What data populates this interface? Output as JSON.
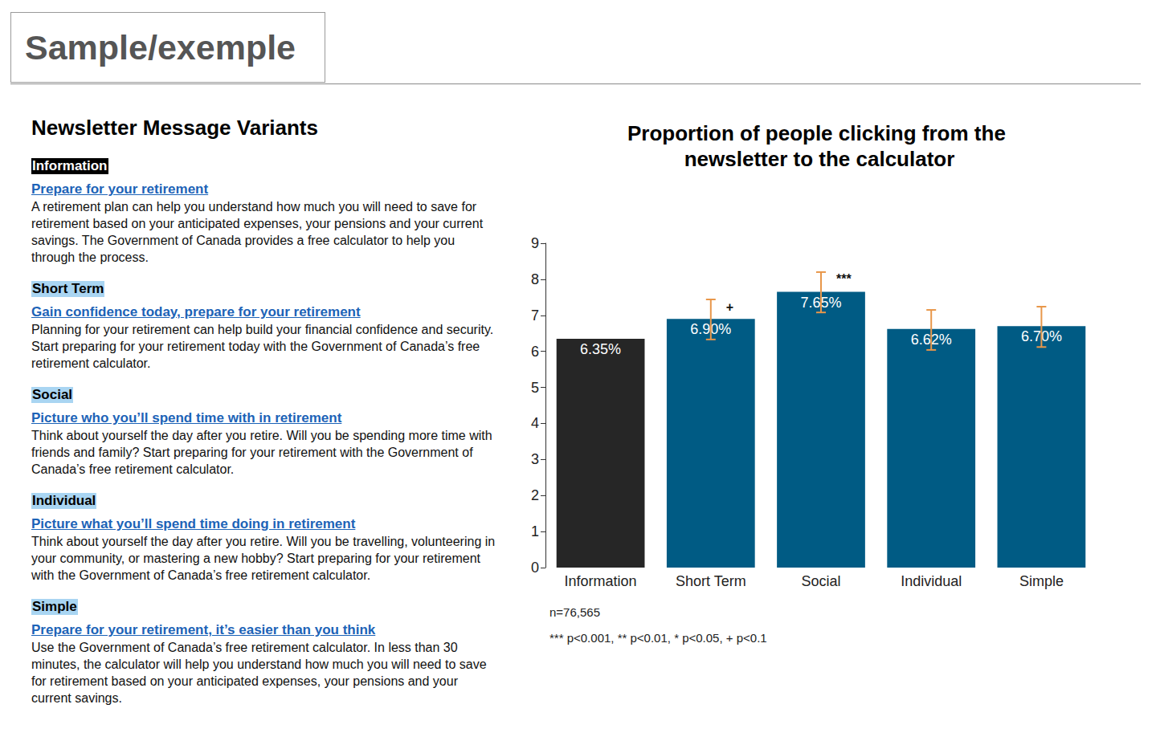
{
  "header": {
    "label": "Sample/exemple"
  },
  "variants": {
    "title": "Newsletter Message Variants",
    "items": [
      {
        "tag": "Information",
        "link": "Prepare for your retirement",
        "body": "A retirement plan can help you understand how much you will need to save for retirement based on your anticipated expenses, your pensions and your current savings. The Government of Canada provides a free calculator to help you through the process."
      },
      {
        "tag": "Short Term",
        "link": "Gain confidence today, prepare for your retirement",
        "body": "Planning for your retirement can help build your financial confidence and security. Start preparing for your retirement today with the Government of Canada’s free retirement calculator."
      },
      {
        "tag": "Social",
        "link": "Picture who you’ll spend time with in retirement",
        "body": "Think about yourself the day after you retire. Will you be spending more time with friends and family? Start preparing for your retirement with the Government of Canada’s free retirement calculator."
      },
      {
        "tag": "Individual",
        "link": "Picture what you’ll spend time doing in retirement",
        "body": "Think about yourself the day after you retire. Will you be travelling, volunteering in your community, or mastering a new hobby? Start preparing for your retirement with the Government of Canada’s free retirement calculator."
      },
      {
        "tag": "Simple",
        "link": "Prepare for your retirement, it’s easier than you think",
        "body": "Use the Government of Canada’s free retirement calculator. In less than 30 minutes, the calculator will help you understand how much you will need to save for retirement based on your anticipated expenses, your pensions and your current savings."
      }
    ]
  },
  "chart_data": {
    "type": "bar",
    "title": "Proportion of people clicking from the newsletter to the calculator",
    "categories": [
      "Information",
      "Short Term",
      "Social",
      "Individual",
      "Simple"
    ],
    "values": [
      6.35,
      6.9,
      7.65,
      6.62,
      6.7
    ],
    "value_labels": [
      "6.35%",
      "6.90%",
      "7.65%",
      "6.62%",
      "6.70%"
    ],
    "colors": [
      "#262626",
      "#005b84",
      "#005b84",
      "#005b84",
      "#005b84"
    ],
    "error_low": [
      null,
      6.33,
      7.08,
      6.04,
      6.12
    ],
    "error_high": [
      null,
      7.44,
      8.2,
      7.15,
      7.24
    ],
    "error_color": "#e8974a",
    "significance": [
      null,
      "+",
      "***",
      null,
      null
    ],
    "ylim": [
      0,
      9
    ],
    "yticks": [
      0,
      1,
      2,
      3,
      4,
      5,
      6,
      7,
      8,
      9
    ],
    "grid": false,
    "data_labels": true,
    "notes": [
      "n=76,565",
      "*** p<0.001, ** p<0.01, * p<0.05, + p<0.1"
    ]
  }
}
